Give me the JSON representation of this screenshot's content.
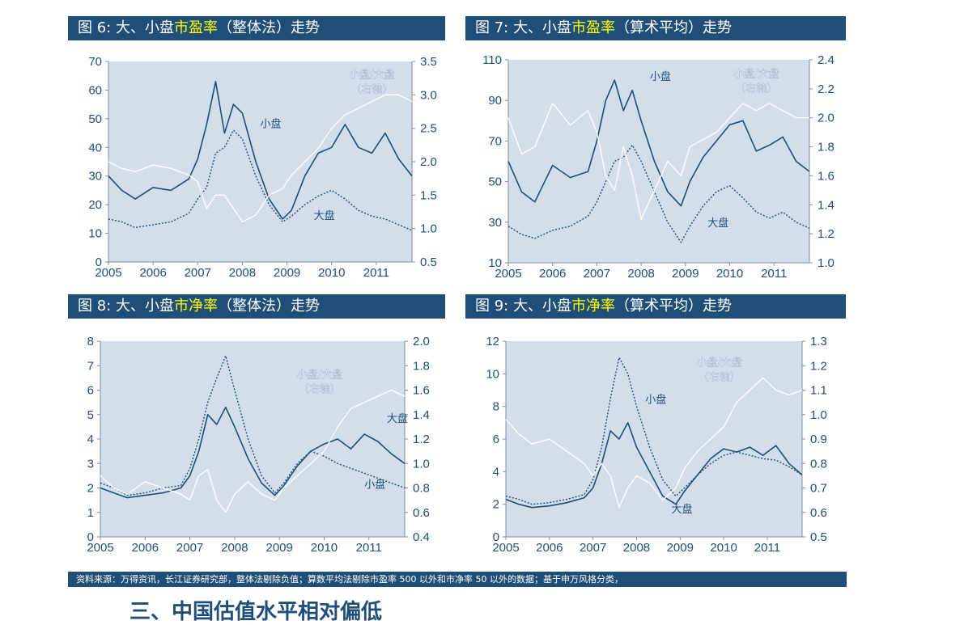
{
  "colors": {
    "header_bg": "#1f4e79",
    "highlight": "#ffff00",
    "plot_bg": "#d3deeb",
    "small_cap": "#1f4e79",
    "large_cap": "#1f4e79",
    "ratio": "#ffffff"
  },
  "chart_data": [
    {
      "type": "line",
      "title_parts": [
        "图 6:  大、小盘",
        "市盈率",
        "（整体法）走势"
      ],
      "x_ticks": [
        "2005",
        "2006",
        "2007",
        "2008",
        "2009",
        "2010",
        "2011"
      ],
      "ylim": [
        0,
        70
      ],
      "y_ticks": [
        "0",
        "10",
        "20",
        "30",
        "40",
        "50",
        "60",
        "70"
      ],
      "y2lim": [
        0.5,
        3.5
      ],
      "y2_ticks": [
        "0.5",
        "1.0",
        "1.5",
        "2.0",
        "2.5",
        "3.0",
        "3.5"
      ],
      "annotations": {
        "small": "小盘",
        "large": "大盘",
        "ratio_line1": "小盘/大盘",
        "ratio_line2": "（右轴）"
      },
      "series": [
        {
          "name": "小盘",
          "axis": "left",
          "style": "solid",
          "x": [
            2005,
            2005.3,
            2005.6,
            2006.0,
            2006.4,
            2006.8,
            2007.0,
            2007.2,
            2007.4,
            2007.6,
            2007.8,
            2008.0,
            2008.3,
            2008.6,
            2008.9,
            2009.1,
            2009.4,
            2009.7,
            2010.0,
            2010.3,
            2010.6,
            2010.9,
            2011.2,
            2011.5,
            2011.8
          ],
          "values": [
            30,
            25,
            22,
            26,
            25,
            29,
            36,
            48,
            63,
            45,
            55,
            52,
            35,
            22,
            15,
            18,
            30,
            38,
            40,
            48,
            40,
            38,
            45,
            36,
            30
          ]
        },
        {
          "name": "大盘",
          "axis": "left",
          "style": "dotted",
          "x": [
            2005,
            2005.3,
            2005.6,
            2006.0,
            2006.4,
            2006.8,
            2007.0,
            2007.2,
            2007.4,
            2007.6,
            2007.8,
            2008.0,
            2008.3,
            2008.6,
            2008.9,
            2009.1,
            2009.4,
            2009.7,
            2010.0,
            2010.3,
            2010.6,
            2010.9,
            2011.2,
            2011.5,
            2011.8
          ],
          "values": [
            15,
            14,
            12,
            13,
            14,
            17,
            22,
            26,
            38,
            40,
            46,
            43,
            30,
            20,
            14,
            16,
            20,
            23,
            25,
            22,
            18,
            16,
            15,
            13,
            11
          ]
        },
        {
          "name": "小盘/大盘",
          "axis": "right",
          "style": "white",
          "x": [
            2005,
            2005.3,
            2005.6,
            2006.0,
            2006.4,
            2006.8,
            2007.0,
            2007.2,
            2007.4,
            2007.6,
            2007.8,
            2008.0,
            2008.3,
            2008.6,
            2008.9,
            2009.1,
            2009.4,
            2009.7,
            2010.0,
            2010.3,
            2010.6,
            2010.9,
            2011.2,
            2011.5,
            2011.8
          ],
          "values": [
            2.0,
            1.9,
            1.85,
            1.95,
            1.9,
            1.8,
            1.7,
            1.3,
            1.5,
            1.5,
            1.3,
            1.1,
            1.2,
            1.5,
            1.6,
            1.8,
            2.0,
            2.2,
            2.5,
            2.7,
            2.8,
            2.9,
            3.0,
            3.0,
            2.9
          ]
        }
      ]
    },
    {
      "type": "line",
      "title_parts": [
        "图 7:  大、小盘",
        "市盈率",
        "（算术平均）走势"
      ],
      "x_ticks": [
        "2005",
        "2006",
        "2007",
        "2008",
        "2009",
        "2010",
        "2011"
      ],
      "ylim": [
        10,
        110
      ],
      "y_ticks": [
        "10",
        "30",
        "50",
        "70",
        "90",
        "110"
      ],
      "y2lim": [
        1.0,
        2.4
      ],
      "y2_ticks": [
        "1.0",
        "1.2",
        "1.4",
        "1.6",
        "1.8",
        "2.0",
        "2.2",
        "2.4"
      ],
      "annotations": {
        "small": "小盘",
        "large": "大盘",
        "ratio_line1": "小盘/大盘",
        "ratio_line2": "（右轴）"
      },
      "series": [
        {
          "name": "小盘",
          "axis": "left",
          "style": "solid",
          "x": [
            2005,
            2005.3,
            2005.6,
            2006.0,
            2006.4,
            2006.8,
            2007.0,
            2007.2,
            2007.4,
            2007.6,
            2007.8,
            2008.0,
            2008.3,
            2008.6,
            2008.9,
            2009.1,
            2009.4,
            2009.7,
            2010.0,
            2010.3,
            2010.6,
            2010.9,
            2011.2,
            2011.5,
            2011.8
          ],
          "values": [
            60,
            45,
            40,
            58,
            52,
            55,
            70,
            90,
            100,
            85,
            95,
            80,
            60,
            45,
            38,
            50,
            62,
            70,
            78,
            80,
            65,
            68,
            72,
            60,
            55
          ]
        },
        {
          "name": "大盘",
          "axis": "left",
          "style": "dotted",
          "x": [
            2005,
            2005.3,
            2005.6,
            2006.0,
            2006.4,
            2006.8,
            2007.0,
            2007.2,
            2007.4,
            2007.6,
            2007.8,
            2008.0,
            2008.3,
            2008.6,
            2008.9,
            2009.1,
            2009.4,
            2009.7,
            2010.0,
            2010.3,
            2010.6,
            2010.9,
            2011.2,
            2011.5,
            2011.8
          ],
          "values": [
            28,
            24,
            22,
            26,
            28,
            33,
            40,
            50,
            60,
            62,
            68,
            60,
            45,
            30,
            20,
            28,
            38,
            45,
            48,
            42,
            35,
            32,
            35,
            30,
            27
          ]
        },
        {
          "name": "小盘/大盘",
          "axis": "right",
          "style": "white",
          "x": [
            2005,
            2005.3,
            2005.6,
            2006.0,
            2006.4,
            2006.8,
            2007.0,
            2007.2,
            2007.4,
            2007.6,
            2007.8,
            2008.0,
            2008.3,
            2008.6,
            2008.9,
            2009.1,
            2009.4,
            2009.7,
            2010.0,
            2010.3,
            2010.6,
            2010.9,
            2011.2,
            2011.5,
            2011.8
          ],
          "values": [
            2.0,
            1.75,
            1.8,
            2.1,
            1.95,
            2.05,
            1.9,
            1.6,
            1.5,
            1.8,
            1.6,
            1.3,
            1.5,
            1.7,
            1.6,
            1.8,
            1.85,
            1.9,
            2.0,
            2.1,
            2.05,
            2.1,
            2.05,
            2.0,
            2.0
          ]
        }
      ]
    },
    {
      "type": "line",
      "title_parts": [
        "图 8:  大、小盘",
        "市净率",
        "（整体法）走势"
      ],
      "x_ticks": [
        "2005",
        "2006",
        "2007",
        "2008",
        "2009",
        "2010",
        "2011"
      ],
      "ylim": [
        0,
        8
      ],
      "y_ticks": [
        "0",
        "1",
        "2",
        "3",
        "4",
        "5",
        "6",
        "7",
        "8"
      ],
      "y2lim": [
        0.4,
        2.0
      ],
      "y2_ticks": [
        "0.4",
        "0.6",
        "0.8",
        "1.0",
        "1.2",
        "1.4",
        "1.6",
        "1.8",
        "2.0"
      ],
      "annotations": {
        "small": "小盘",
        "large": "大盘",
        "ratio_line1": "小盘/大盘",
        "ratio_line2": "（右轴）"
      },
      "series": [
        {
          "name": "小盘",
          "axis": "left",
          "style": "dotted",
          "x": [
            2005,
            2005.3,
            2005.6,
            2006.0,
            2006.4,
            2006.8,
            2007.0,
            2007.2,
            2007.4,
            2007.6,
            2007.8,
            2008.0,
            2008.3,
            2008.6,
            2008.9,
            2009.1,
            2009.4,
            2009.7,
            2010.0,
            2010.3,
            2010.6,
            2010.9,
            2011.2,
            2011.5,
            2011.8
          ],
          "values": [
            2.2,
            2.0,
            1.7,
            1.8,
            2.0,
            2.1,
            2.8,
            4.0,
            5.5,
            6.5,
            7.4,
            6.0,
            4.0,
            2.5,
            1.8,
            2.2,
            3.0,
            3.5,
            3.3,
            3.0,
            2.8,
            2.6,
            2.4,
            2.2,
            2.0
          ]
        },
        {
          "name": "大盘",
          "axis": "left",
          "style": "solid",
          "x": [
            2005,
            2005.3,
            2005.6,
            2006.0,
            2006.4,
            2006.8,
            2007.0,
            2007.2,
            2007.4,
            2007.6,
            2007.8,
            2008.0,
            2008.3,
            2008.6,
            2008.9,
            2009.1,
            2009.4,
            2009.7,
            2010.0,
            2010.3,
            2010.6,
            2010.9,
            2011.2,
            2011.5,
            2011.8
          ],
          "values": [
            2.0,
            1.8,
            1.6,
            1.7,
            1.8,
            2.0,
            2.5,
            3.5,
            5.0,
            4.6,
            5.3,
            4.5,
            3.2,
            2.2,
            1.7,
            2.1,
            2.9,
            3.5,
            3.8,
            4.0,
            3.6,
            4.2,
            3.9,
            3.4,
            3.0
          ]
        },
        {
          "name": "小盘/大盘",
          "axis": "right",
          "style": "white",
          "x": [
            2005,
            2005.3,
            2005.6,
            2006.0,
            2006.4,
            2006.8,
            2007.0,
            2007.2,
            2007.4,
            2007.6,
            2007.8,
            2008.0,
            2008.3,
            2008.6,
            2008.9,
            2009.1,
            2009.4,
            2009.7,
            2010.0,
            2010.3,
            2010.6,
            2010.9,
            2011.2,
            2011.5,
            2011.8
          ],
          "values": [
            0.9,
            0.8,
            0.75,
            0.85,
            0.8,
            0.75,
            0.7,
            0.9,
            0.95,
            0.7,
            0.6,
            0.75,
            0.85,
            0.75,
            0.7,
            0.8,
            0.9,
            1.0,
            1.1,
            1.3,
            1.45,
            1.5,
            1.55,
            1.6,
            1.55
          ]
        }
      ]
    },
    {
      "type": "line",
      "title_parts": [
        "图 9:  大、小盘",
        "市净率",
        "（算术平均）走势"
      ],
      "x_ticks": [
        "2005",
        "2006",
        "2007",
        "2008",
        "2009",
        "2010",
        "2011"
      ],
      "ylim": [
        0,
        12
      ],
      "y_ticks": [
        "0",
        "2",
        "4",
        "6",
        "8",
        "10",
        "12"
      ],
      "y2lim": [
        0.5,
        1.3
      ],
      "y2_ticks": [
        "0.5",
        "0.6",
        "0.7",
        "0.8",
        "0.9",
        "1.0",
        "1.1",
        "1.2",
        "1.3"
      ],
      "annotations": {
        "small": "小盘",
        "large": "大盘",
        "ratio_line1": "小盘/大盘",
        "ratio_line2": "（右轴）"
      },
      "series": [
        {
          "name": "小盘",
          "axis": "left",
          "style": "dotted",
          "x": [
            2005,
            2005.3,
            2005.6,
            2006.0,
            2006.4,
            2006.8,
            2007.0,
            2007.2,
            2007.4,
            2007.6,
            2007.8,
            2008.0,
            2008.3,
            2008.6,
            2008.9,
            2009.1,
            2009.4,
            2009.7,
            2010.0,
            2010.3,
            2010.6,
            2010.9,
            2011.2,
            2011.5,
            2011.8
          ],
          "values": [
            2.5,
            2.3,
            2.0,
            2.1,
            2.3,
            2.6,
            3.5,
            5.5,
            8.5,
            11.0,
            10.0,
            8.0,
            5.5,
            3.5,
            2.5,
            3.0,
            3.8,
            4.5,
            5.0,
            5.2,
            5.0,
            4.8,
            4.7,
            4.3,
            3.8
          ]
        },
        {
          "name": "大盘",
          "axis": "left",
          "style": "solid",
          "x": [
            2005,
            2005.3,
            2005.6,
            2006.0,
            2006.4,
            2006.8,
            2007.0,
            2007.2,
            2007.4,
            2007.6,
            2007.8,
            2008.0,
            2008.3,
            2008.6,
            2008.9,
            2009.1,
            2009.4,
            2009.7,
            2010.0,
            2010.3,
            2010.6,
            2010.9,
            2011.2,
            2011.5,
            2011.8
          ],
          "values": [
            2.3,
            2.0,
            1.8,
            1.9,
            2.1,
            2.4,
            3.0,
            4.5,
            6.5,
            6.0,
            7.0,
            5.5,
            4.0,
            2.5,
            2.0,
            2.8,
            3.8,
            4.8,
            5.4,
            5.2,
            5.5,
            5.0,
            5.6,
            4.5,
            3.8
          ]
        },
        {
          "name": "小盘/大盘",
          "axis": "right",
          "style": "white",
          "x": [
            2005,
            2005.3,
            2005.6,
            2006.0,
            2006.4,
            2006.8,
            2007.0,
            2007.2,
            2007.4,
            2007.6,
            2007.8,
            2008.0,
            2008.3,
            2008.6,
            2008.9,
            2009.1,
            2009.4,
            2009.7,
            2010.0,
            2010.3,
            2010.6,
            2010.9,
            2011.2,
            2011.5,
            2011.8
          ],
          "values": [
            0.98,
            0.92,
            0.88,
            0.9,
            0.85,
            0.8,
            0.75,
            0.8,
            0.75,
            0.62,
            0.7,
            0.75,
            0.72,
            0.65,
            0.7,
            0.78,
            0.85,
            0.9,
            0.95,
            1.05,
            1.1,
            1.15,
            1.1,
            1.08,
            1.1
          ]
        }
      ]
    }
  ],
  "footer_text": "资料来源：万得资讯，长江证券研究部，整体法剔除负值；算数平均法剔除市盈率 500 以外和市净率 50 以外的数据；基于申万风格分类，",
  "bottom_title": "三、中国估值水平相对偏低"
}
